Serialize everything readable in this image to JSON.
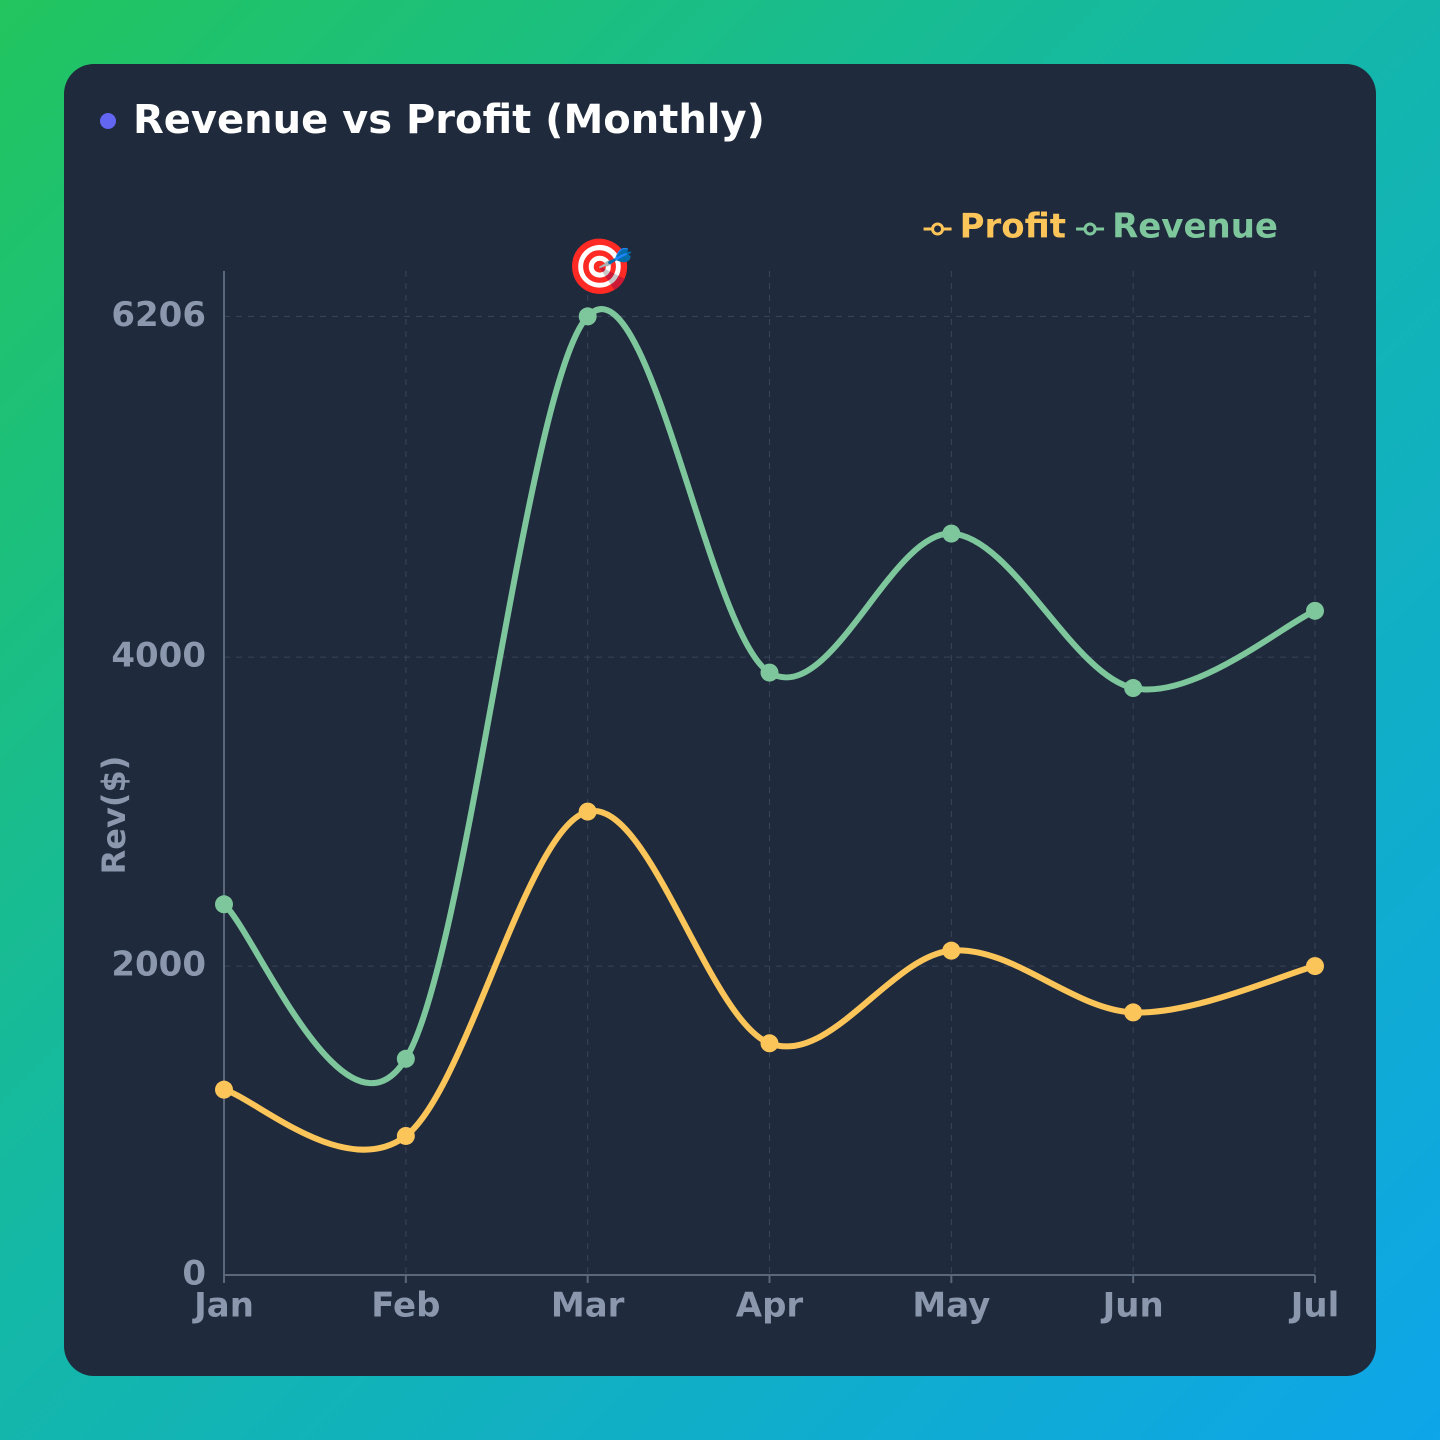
{
  "chart_data": {
    "type": "line",
    "title": "Revenue vs Profit (Monthly)",
    "y_label": "Rev($)",
    "categories": [
      "Jan",
      "Feb",
      "Mar",
      "Apr",
      "May",
      "Jun",
      "Jul"
    ],
    "series": [
      {
        "name": "Profit",
        "color": "#fcc55a",
        "values": [
          1200,
          900,
          3000,
          1500,
          2100,
          1700,
          2000
        ]
      },
      {
        "name": "Revenue",
        "color": "#7ec79d",
        "values": [
          2400,
          1400,
          6206,
          3900,
          4800,
          3800,
          4300
        ]
      }
    ],
    "annotation": "🎯",
    "ylim": [
      0,
      6500
    ],
    "yticks": [
      0,
      2000,
      4000,
      6206
    ],
    "grid": true,
    "legend": "top-right"
  }
}
